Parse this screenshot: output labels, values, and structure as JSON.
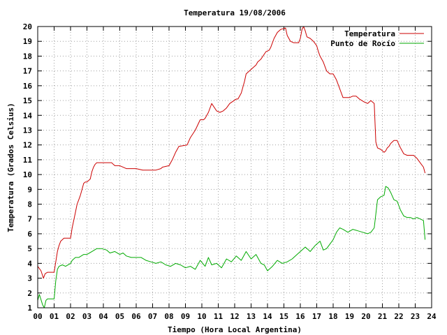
{
  "chart_data": {
    "type": "line",
    "title": "Temperatura 19/08/2006",
    "xlabel": "Tiempo (Hora Local Argentina)",
    "ylabel": "Temperatura (Grados Celsius)",
    "xlim": [
      0,
      24
    ],
    "ylim": [
      1,
      20
    ],
    "x_tick_labels": [
      "00",
      "01",
      "02",
      "03",
      "04",
      "05",
      "06",
      "07",
      "08",
      "09",
      "10",
      "11",
      "12",
      "13",
      "14",
      "15",
      "16",
      "17",
      "18",
      "19",
      "20",
      "21",
      "22",
      "23",
      "24"
    ],
    "y_tick_labels": [
      "1",
      "2",
      "3",
      "4",
      "5",
      "6",
      "7",
      "8",
      "9",
      "10",
      "11",
      "12",
      "13",
      "14",
      "15",
      "16",
      "17",
      "18",
      "19",
      "20"
    ],
    "grid": true,
    "legend_position": "top-right",
    "series": [
      {
        "name": "Temperatura",
        "color": "#cc0000",
        "x": [
          0.0,
          0.2,
          0.35,
          0.45,
          0.6,
          1.0,
          1.2,
          1.3,
          1.4,
          1.5,
          1.6,
          2.0,
          2.1,
          2.25,
          2.4,
          2.5,
          2.6,
          2.7,
          2.8,
          2.9,
          3.0,
          3.1,
          3.2,
          3.3,
          3.4,
          3.5,
          3.6,
          4.5,
          4.6,
          4.7,
          5.0,
          5.4,
          6.0,
          6.4,
          6.8,
          7.2,
          7.5,
          7.6,
          8.0,
          8.2,
          8.4,
          8.6,
          9.1,
          9.3,
          9.6,
          9.9,
          10.1,
          10.2,
          10.4,
          10.6,
          10.9,
          11.1,
          11.3,
          11.5,
          11.7,
          12.1,
          12.2,
          12.4,
          12.6,
          12.7,
          13.1,
          13.3,
          13.4,
          13.6,
          13.9,
          14.1,
          14.2,
          14.4,
          14.6,
          14.8,
          15.1,
          15.2,
          15.4,
          15.6,
          15.9,
          16.0,
          16.1,
          16.2,
          16.3,
          16.4,
          16.6,
          16.8,
          17.0,
          17.1,
          17.2,
          17.4,
          17.6,
          17.8,
          18.0,
          18.2,
          18.4,
          18.6,
          19.0,
          19.2,
          19.4,
          19.6,
          19.9,
          20.1,
          20.3,
          20.4,
          20.5,
          20.6,
          20.7,
          20.9,
          21.1,
          21.2,
          21.3,
          21.4,
          21.5,
          21.7,
          21.9,
          22.1,
          22.3,
          22.5,
          22.9,
          23.1,
          23.3,
          23.5,
          23.6
        ],
        "y": [
          3.8,
          3.5,
          3.0,
          3.3,
          3.4,
          3.4,
          4.8,
          5.2,
          5.5,
          5.6,
          5.7,
          5.7,
          6.4,
          7.2,
          8.0,
          8.3,
          8.6,
          9.0,
          9.4,
          9.5,
          9.5,
          9.6,
          9.7,
          10.2,
          10.5,
          10.7,
          10.8,
          10.8,
          10.7,
          10.6,
          10.6,
          10.4,
          10.4,
          10.3,
          10.3,
          10.3,
          10.4,
          10.5,
          10.6,
          11.0,
          11.5,
          11.9,
          12.0,
          12.5,
          13.0,
          13.7,
          13.7,
          13.8,
          14.2,
          14.8,
          14.3,
          14.2,
          14.3,
          14.5,
          14.8,
          15.1,
          15.1,
          15.5,
          16.3,
          16.8,
          17.2,
          17.4,
          17.6,
          17.8,
          18.3,
          18.4,
          18.6,
          19.2,
          19.6,
          19.8,
          19.9,
          19.4,
          19.0,
          18.9,
          18.9,
          19.2,
          19.8,
          20.0,
          19.7,
          19.3,
          19.2,
          19.0,
          18.7,
          18.3,
          18.0,
          17.6,
          17.0,
          16.8,
          16.8,
          16.4,
          15.8,
          15.2,
          15.2,
          15.3,
          15.3,
          15.1,
          14.9,
          14.8,
          15.0,
          14.9,
          14.8,
          12.2,
          11.8,
          11.7,
          11.5,
          11.6,
          11.8,
          11.9,
          12.1,
          12.3,
          12.3,
          11.8,
          11.4,
          11.3,
          11.3,
          11.1,
          10.8,
          10.5,
          10.1
        ]
      },
      {
        "name": "Punto de Rocío",
        "color": "#00aa00",
        "x": [
          0.0,
          0.1,
          0.3,
          0.4,
          0.5,
          0.6,
          0.9,
          1.0,
          1.1,
          1.2,
          1.3,
          1.5,
          1.7,
          2.0,
          2.1,
          2.3,
          2.5,
          2.8,
          3.0,
          3.3,
          3.6,
          3.9,
          4.2,
          4.4,
          4.7,
          5.0,
          5.2,
          5.4,
          5.7,
          6.0,
          6.3,
          6.6,
          6.9,
          7.2,
          7.5,
          7.8,
          8.1,
          8.4,
          8.7,
          9.0,
          9.3,
          9.6,
          9.9,
          10.2,
          10.4,
          10.6,
          10.9,
          11.2,
          11.5,
          11.8,
          12.1,
          12.4,
          12.7,
          13.0,
          13.3,
          13.6,
          13.8,
          14.0,
          14.3,
          14.6,
          14.9,
          15.2,
          15.5,
          15.8,
          16.1,
          16.3,
          16.6,
          16.9,
          17.2,
          17.4,
          17.6,
          17.8,
          18.0,
          18.2,
          18.4,
          18.6,
          18.9,
          19.2,
          19.5,
          19.8,
          20.1,
          20.3,
          20.5,
          20.7,
          20.9,
          21.1,
          21.2,
          21.35,
          21.5,
          21.7,
          21.9,
          22.1,
          22.3,
          22.5,
          22.7,
          22.9,
          23.1,
          23.3,
          23.5,
          23.6
        ],
        "y": [
          1.5,
          1.9,
          1.2,
          1.0,
          1.5,
          1.6,
          1.6,
          1.6,
          2.8,
          3.6,
          3.8,
          3.9,
          3.8,
          4.0,
          4.2,
          4.4,
          4.4,
          4.6,
          4.6,
          4.8,
          5.0,
          5.0,
          4.9,
          4.7,
          4.8,
          4.6,
          4.7,
          4.5,
          4.4,
          4.4,
          4.4,
          4.2,
          4.1,
          4.0,
          4.1,
          3.9,
          3.8,
          4.0,
          3.9,
          3.7,
          3.8,
          3.6,
          4.2,
          3.8,
          4.4,
          3.9,
          4.0,
          3.7,
          4.3,
          4.1,
          4.5,
          4.2,
          4.8,
          4.3,
          4.6,
          4.0,
          3.9,
          3.5,
          3.8,
          4.2,
          4.0,
          4.1,
          4.3,
          4.6,
          4.9,
          5.1,
          4.8,
          5.2,
          5.5,
          4.9,
          5.0,
          5.3,
          5.6,
          6.1,
          6.4,
          6.3,
          6.1,
          6.3,
          6.2,
          6.1,
          6.0,
          6.1,
          6.4,
          8.3,
          8.5,
          8.6,
          9.2,
          9.1,
          8.8,
          8.3,
          8.2,
          7.6,
          7.2,
          7.1,
          7.1,
          7.0,
          7.1,
          7.0,
          6.9,
          5.6
        ]
      }
    ]
  }
}
